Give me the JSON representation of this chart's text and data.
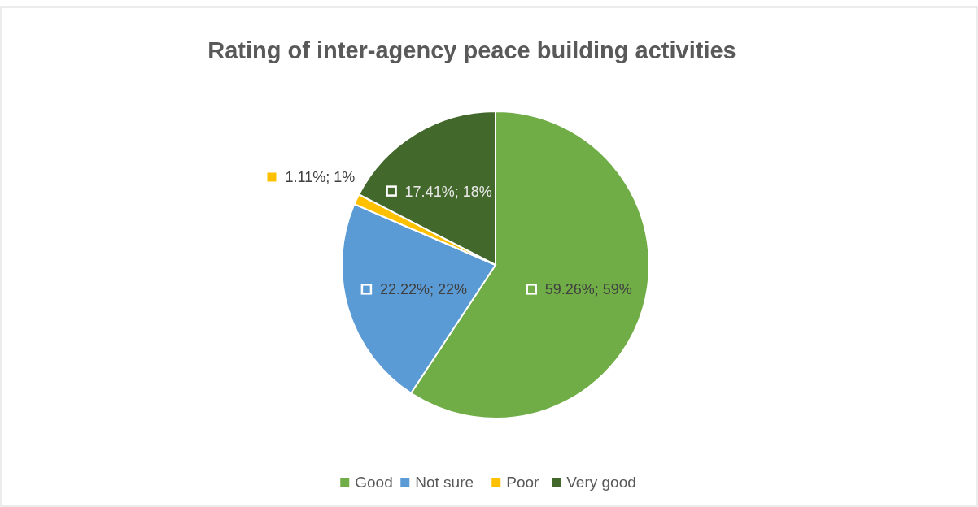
{
  "chart_data": {
    "type": "pie",
    "title": "Rating of inter-agency peace building activities",
    "categories": [
      "Good",
      "Not sure",
      "Poor",
      "Very good"
    ],
    "values": [
      59.26,
      22.22,
      1.11,
      17.41
    ],
    "colors": [
      "#70ad47",
      "#5b9bd5",
      "#ffc000",
      "#43682b"
    ],
    "value_labels": [
      "59.26%; 59%",
      "22.22%; 22%",
      "1.11%; 1%",
      "17.41%; 18%"
    ],
    "legend": "bottom"
  }
}
